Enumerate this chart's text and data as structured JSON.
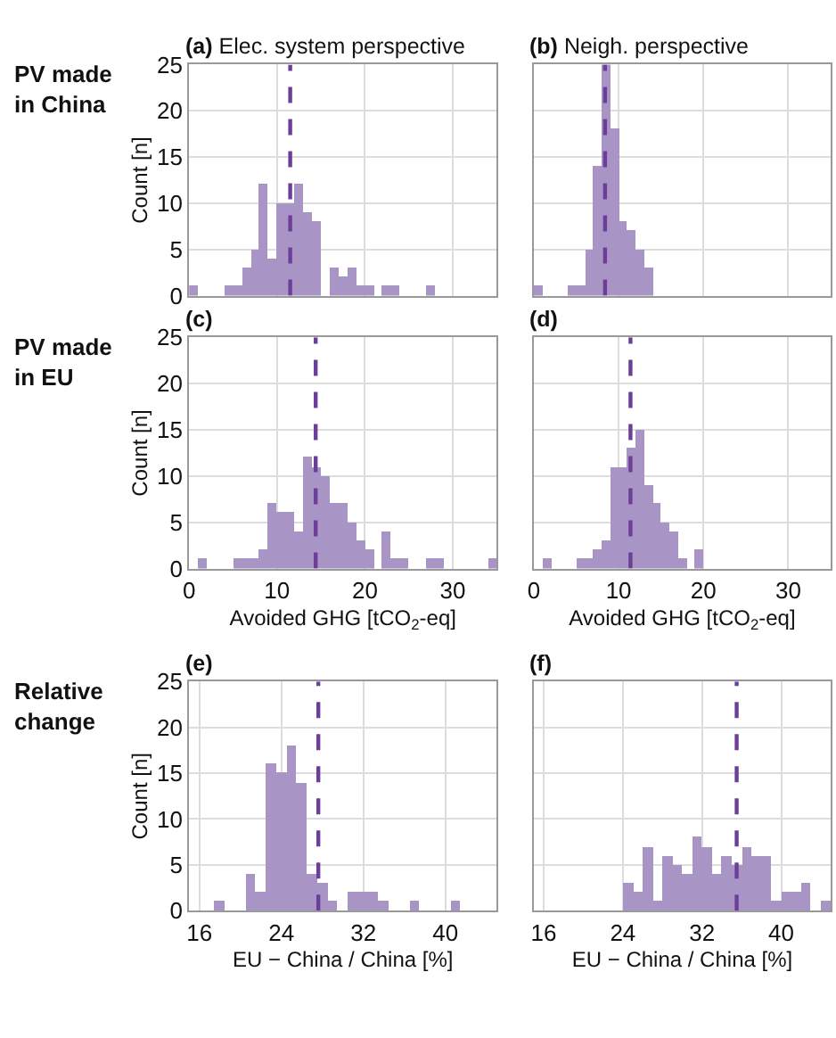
{
  "chart_data": [
    {
      "type": "histogram",
      "title": "(a) Elec. system perspective",
      "ylabel": "Count [n]",
      "annotations": [
        "PV made\nin China"
      ],
      "color": "#a995c5",
      "bins": [
        0,
        1,
        2,
        3,
        4,
        5,
        6,
        7,
        8,
        9,
        10,
        11,
        12,
        13,
        14,
        15,
        16,
        17,
        18,
        19,
        20,
        21,
        22,
        23,
        24,
        25,
        26,
        27,
        28,
        29,
        30,
        31,
        32,
        33,
        34,
        35
      ],
      "values": [
        1,
        0,
        0,
        0,
        1,
        1,
        3,
        5,
        12,
        4,
        10,
        10,
        12,
        9,
        8,
        0,
        3,
        2,
        3,
        1,
        1,
        0,
        1,
        1,
        0,
        0,
        0,
        1,
        0,
        0,
        0,
        0,
        0,
        0,
        0
      ],
      "xlim": [
        0,
        35
      ],
      "ylim": [
        0,
        25
      ],
      "xticks": [
        0,
        10,
        20,
        30
      ],
      "yticks": [
        0,
        5,
        10,
        15,
        20,
        25
      ],
      "grid": true,
      "tick_labels": "y",
      "ref_lines": [
        {
          "axis": "x",
          "value": 11.5,
          "color": "#6b3f99",
          "line_style": "dashed"
        }
      ]
    },
    {
      "type": "histogram",
      "title": "(b) Neigh. perspective",
      "color": "#a995c5",
      "bins": [
        0,
        1,
        2,
        3,
        4,
        5,
        6,
        7,
        8,
        9,
        10,
        11,
        12,
        13,
        14,
        15,
        16,
        17,
        18,
        19,
        20,
        21,
        22,
        23,
        24,
        25,
        26,
        27,
        28,
        29,
        30,
        31,
        32,
        33,
        34,
        35
      ],
      "values": [
        1,
        0,
        0,
        0,
        1,
        1,
        5,
        14,
        25,
        18,
        8,
        7,
        5,
        3,
        0,
        0,
        0,
        0,
        0,
        0,
        0,
        0,
        0,
        0,
        0,
        0,
        0,
        0,
        0,
        0,
        0,
        0,
        0,
        0,
        0
      ],
      "xlim": [
        0,
        35
      ],
      "ylim": [
        0,
        25
      ],
      "xticks": [
        0,
        10,
        20,
        30
      ],
      "yticks": [
        0,
        5,
        10,
        15,
        20,
        25
      ],
      "grid": true,
      "tick_labels": false,
      "ref_lines": [
        {
          "axis": "x",
          "value": 8.4,
          "color": "#6b3f99",
          "line_style": "dashed"
        }
      ]
    },
    {
      "type": "histogram",
      "title": "(c)",
      "xlabel": "Avoided GHG [tCO$_{2}$-eq]",
      "ylabel": "Count [n]",
      "annotations": [
        "PV made\nin EU"
      ],
      "color": "#a995c5",
      "bins": [
        0,
        1,
        2,
        3,
        4,
        5,
        6,
        7,
        8,
        9,
        10,
        11,
        12,
        13,
        14,
        15,
        16,
        17,
        18,
        19,
        20,
        21,
        22,
        23,
        24,
        25,
        26,
        27,
        28,
        29,
        30,
        31,
        32,
        33,
        34,
        35
      ],
      "values": [
        0,
        1,
        0,
        0,
        0,
        1,
        1,
        1,
        2,
        7,
        6,
        6,
        4,
        12,
        11,
        10,
        7,
        7,
        5,
        3,
        2,
        0,
        4,
        1,
        1,
        0,
        0,
        1,
        1,
        0,
        0,
        0,
        0,
        0,
        1
      ],
      "xlim": [
        0,
        35
      ],
      "ylim": [
        0,
        25
      ],
      "xticks": [
        0,
        10,
        20,
        30
      ],
      "yticks": [
        0,
        5,
        10,
        15,
        20,
        25
      ],
      "grid": true,
      "ref_lines": [
        {
          "axis": "x",
          "value": 14.4,
          "color": "#6b3f99",
          "line_style": "dashed"
        }
      ]
    },
    {
      "type": "histogram",
      "title": "(d)",
      "xlabel": "Avoided GHG [tCO$_{2}$-eq]",
      "color": "#a995c5",
      "bins": [
        0,
        1,
        2,
        3,
        4,
        5,
        6,
        7,
        8,
        9,
        10,
        11,
        12,
        13,
        14,
        15,
        16,
        17,
        18,
        19,
        20,
        21,
        22,
        23,
        24,
        25,
        26,
        27,
        28,
        29,
        30,
        31,
        32,
        33,
        34,
        35
      ],
      "values": [
        0,
        1,
        0,
        0,
        0,
        1,
        1,
        2,
        3,
        11,
        11,
        13,
        15,
        9,
        7,
        5,
        4,
        1,
        0,
        2,
        0,
        0,
        0,
        0,
        0,
        0,
        0,
        0,
        0,
        0,
        0,
        0,
        0,
        0,
        0
      ],
      "xlim": [
        0,
        35
      ],
      "ylim": [
        0,
        25
      ],
      "xticks": [
        0,
        10,
        20,
        30
      ],
      "yticks": [
        0,
        5,
        10,
        15,
        20,
        25
      ],
      "grid": true,
      "tick_labels": "x",
      "ref_lines": [
        {
          "axis": "x",
          "value": 11.4,
          "color": "#6b3f99",
          "line_style": "dashed"
        }
      ]
    },
    {
      "type": "histogram",
      "title": "(e)",
      "xlabel": "EU − China / China [%]",
      "ylabel": "Count [n]",
      "annotations": [
        "Relative\nchange"
      ],
      "color": "#a995c5",
      "bins": [
        15.5,
        16.5,
        17.5,
        18.5,
        19.5,
        20.5,
        21.5,
        22.5,
        23.5,
        24.5,
        25.5,
        26.5,
        27.5,
        28.5,
        29.5,
        30.5,
        31.5,
        32.5,
        33.5,
        34.5,
        35.5,
        36.5,
        37.5,
        38.5,
        39.5,
        40.5,
        41.5,
        42.5,
        43.5,
        44.5
      ],
      "values": [
        0,
        0,
        1,
        0,
        0,
        4,
        2,
        16,
        15,
        18,
        14,
        4,
        3,
        1,
        0,
        2,
        2,
        2,
        1,
        0,
        0,
        1,
        0,
        0,
        0,
        1,
        0,
        0,
        0
      ],
      "xlim": [
        15,
        45
      ],
      "ylim": [
        0,
        25
      ],
      "xticks": [
        16,
        24,
        32,
        40
      ],
      "yticks": [
        0,
        5,
        10,
        15,
        20,
        25
      ],
      "grid": true,
      "ref_lines": [
        {
          "axis": "x",
          "value": 27.6,
          "color": "#6b3f99",
          "line_style": "dashed"
        }
      ]
    },
    {
      "type": "histogram",
      "title": "(f)",
      "xlabel": "EU − China / China [%]",
      "color": "#a995c5",
      "bins": [
        15,
        16,
        17,
        18,
        19,
        20,
        21,
        22,
        23,
        24,
        25,
        26,
        27,
        28,
        29,
        30,
        31,
        32,
        33,
        34,
        35,
        36,
        37,
        38,
        39,
        40,
        41,
        42,
        43,
        44,
        45
      ],
      "values": [
        0,
        0,
        0,
        0,
        0,
        0,
        0,
        0,
        0,
        3,
        2,
        7,
        1,
        6,
        5,
        4,
        8,
        7,
        4,
        6,
        5,
        7,
        6,
        6,
        1,
        2,
        2,
        3,
        0,
        1
      ],
      "xlim": [
        15,
        45
      ],
      "ylim": [
        0,
        25
      ],
      "xticks": [
        16,
        24,
        32,
        40
      ],
      "yticks": [
        0,
        5,
        10,
        15,
        20,
        25
      ],
      "grid": true,
      "tick_labels": "x",
      "ref_lines": [
        {
          "axis": "x",
          "value": 35.5,
          "color": "#6b3f99",
          "line_style": "dashed"
        }
      ]
    }
  ]
}
